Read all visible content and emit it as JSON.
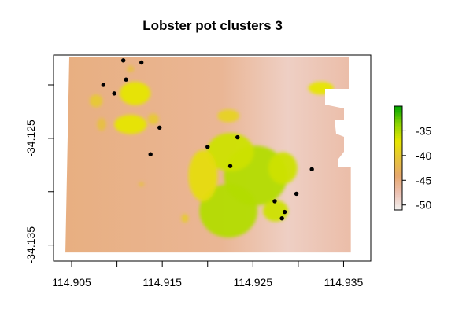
{
  "chart_data": {
    "type": "heatmap",
    "title": "Lobster pot clusters 3",
    "xlabel": "",
    "ylabel": "",
    "xlim": [
      114.903,
      114.938
    ],
    "ylim": [
      -34.1365,
      -34.1172
    ],
    "x_ticks": [
      114.905,
      114.915,
      114.925,
      114.935
    ],
    "x_tick_labels": [
      "114.905",
      "114.915",
      "114.925",
      "114.935"
    ],
    "y_ticks": [
      -34.125,
      -34.135
    ],
    "y_tick_labels": [
      "-34.125",
      "-34.135"
    ],
    "y_minor_ticks": [
      -34.12,
      -34.13
    ],
    "raster_extent": {
      "x": [
        114.9042,
        114.9358
      ],
      "y": [
        -34.1357,
        -34.1173
      ]
    },
    "color_scale": {
      "range": [
        -51,
        -30
      ],
      "legend_ticks": [
        -35,
        -40,
        -45,
        -50
      ],
      "legend_tick_labels": [
        "-35",
        "-40",
        "-45",
        "-50"
      ],
      "colors_low_to_high": [
        "#f2f2f2",
        "#ecc1b2",
        "#e7a86e",
        "#e7c43a",
        "#e6e600",
        "#8dd400",
        "#00a600"
      ]
    },
    "depth_background": {
      "west": -45,
      "east": -48.5
    },
    "shoals": [
      {
        "x": 114.9223,
        "y": -34.1318,
        "rx": 0.0032,
        "ry": 0.0025,
        "depth": -35
      },
      {
        "x": 114.9253,
        "y": -34.1285,
        "rx": 0.0035,
        "ry": 0.0028,
        "depth": -35
      },
      {
        "x": 114.9225,
        "y": -34.1263,
        "rx": 0.0026,
        "ry": 0.0018,
        "depth": -36
      },
      {
        "x": 114.9195,
        "y": -34.1285,
        "rx": 0.0016,
        "ry": 0.0024,
        "depth": -38
      },
      {
        "x": 114.9275,
        "y": -34.1318,
        "rx": 0.0014,
        "ry": 0.001,
        "depth": -36
      },
      {
        "x": 114.9283,
        "y": -34.1278,
        "rx": 0.0016,
        "ry": 0.0015,
        "depth": -36
      },
      {
        "x": 114.912,
        "y": -34.1208,
        "rx": 0.0017,
        "ry": 0.0011,
        "depth": -37
      },
      {
        "x": 114.9115,
        "y": -34.1237,
        "rx": 0.0018,
        "ry": 0.0009,
        "depth": -37
      },
      {
        "x": 114.9077,
        "y": -34.1215,
        "rx": 0.0007,
        "ry": 0.0006,
        "depth": -40
      },
      {
        "x": 114.9083,
        "y": -34.1237,
        "rx": 0.0005,
        "ry": 0.0006,
        "depth": -41
      },
      {
        "x": 114.9325,
        "y": -34.1203,
        "rx": 0.0014,
        "ry": 0.0006,
        "depth": -37
      },
      {
        "x": 114.914,
        "y": -34.1232,
        "rx": 0.0006,
        "ry": 0.0005,
        "depth": -40
      },
      {
        "x": 114.9115,
        "y": -34.1185,
        "rx": 0.0004,
        "ry": 0.0003,
        "depth": -41
      },
      {
        "x": 114.9127,
        "y": -34.1293,
        "rx": 0.0003,
        "ry": 0.0002,
        "depth": -41
      },
      {
        "x": 114.9223,
        "y": -34.1229,
        "rx": 0.0012,
        "ry": 0.0006,
        "depth": -39
      },
      {
        "x": 114.9175,
        "y": -34.1325,
        "rx": 0.0004,
        "ry": 0.0004,
        "depth": -40
      }
    ],
    "pot_locations": [
      {
        "x": 114.9107,
        "y": -34.1177
      },
      {
        "x": 114.9127,
        "y": -34.1179
      },
      {
        "x": 114.911,
        "y": -34.1195
      },
      {
        "x": 114.9085,
        "y": -34.12
      },
      {
        "x": 114.9097,
        "y": -34.1208
      },
      {
        "x": 114.9147,
        "y": -34.124
      },
      {
        "x": 114.9137,
        "y": -34.1265
      },
      {
        "x": 114.92,
        "y": -34.1258
      },
      {
        "x": 114.9233,
        "y": -34.1249
      },
      {
        "x": 114.9225,
        "y": -34.1276
      },
      {
        "x": 114.9315,
        "y": -34.1279
      },
      {
        "x": 114.9298,
        "y": -34.1302
      },
      {
        "x": 114.9274,
        "y": -34.1309
      },
      {
        "x": 114.9285,
        "y": -34.1319
      },
      {
        "x": 114.9282,
        "y": -34.1325
      }
    ]
  }
}
